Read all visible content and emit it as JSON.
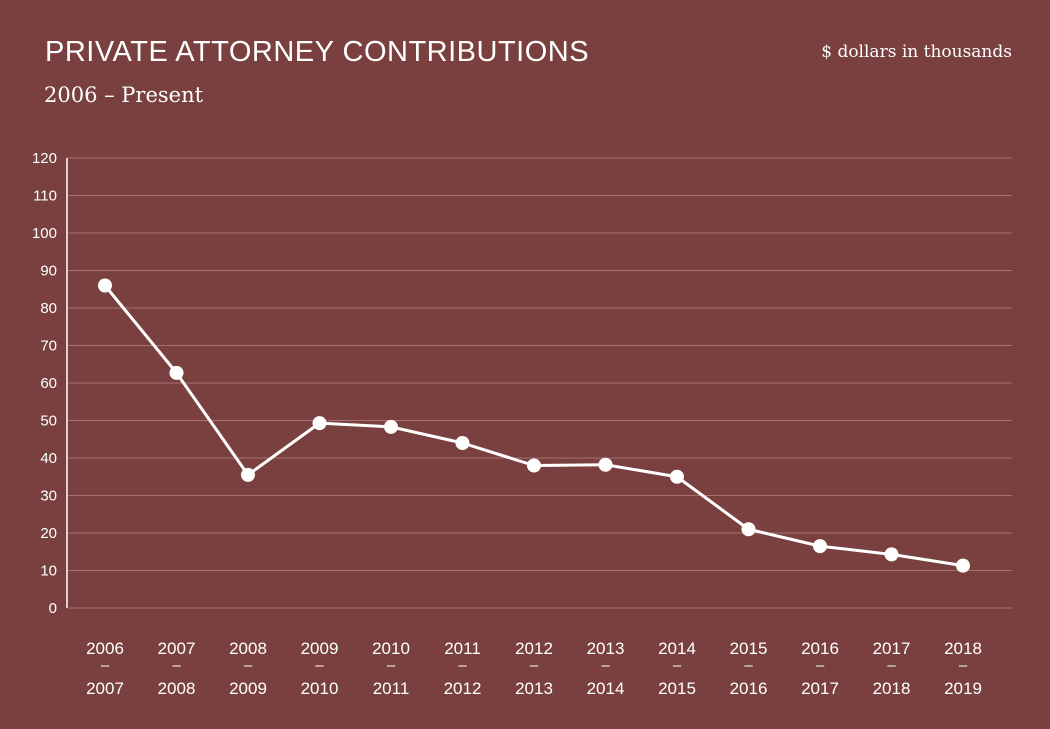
{
  "header": {
    "title": "PRIVATE ATTORNEY CONTRIBUTIONS",
    "subtitle": "2006 – Present",
    "units": "$ dollars in thousands"
  },
  "colors": {
    "background": "#7a4040",
    "line": "#ffffff",
    "grid": "#a87070"
  },
  "chart_data": {
    "type": "line",
    "title": "PRIVATE ATTORNEY CONTRIBUTIONS",
    "subtitle": "2006 – Present",
    "ylabel": "$ dollars in thousands",
    "xlabel": "",
    "ylim": [
      0,
      120
    ],
    "y_ticks": [
      0,
      10,
      20,
      30,
      40,
      50,
      60,
      70,
      80,
      90,
      100,
      110,
      120
    ],
    "grid": true,
    "legend": "none",
    "categories": [
      {
        "top": "2006",
        "sep": "–",
        "bottom": "2007"
      },
      {
        "top": "2007",
        "sep": "–",
        "bottom": "2008"
      },
      {
        "top": "2008",
        "sep": "–",
        "bottom": "2009"
      },
      {
        "top": "2009",
        "sep": "–",
        "bottom": "2010"
      },
      {
        "top": "2010",
        "sep": "–",
        "bottom": "2011"
      },
      {
        "top": "2011",
        "sep": "–",
        "bottom": "2012"
      },
      {
        "top": "2012",
        "sep": "–",
        "bottom": "2013"
      },
      {
        "top": "2013",
        "sep": "–",
        "bottom": "2014"
      },
      {
        "top": "2014",
        "sep": "–",
        "bottom": "2015"
      },
      {
        "top": "2015",
        "sep": "–",
        "bottom": "2016"
      },
      {
        "top": "2016",
        "sep": "–",
        "bottom": "2017"
      },
      {
        "top": "2017",
        "sep": "–",
        "bottom": "2018"
      },
      {
        "top": "2018",
        "sep": "–",
        "bottom": "2019"
      }
    ],
    "values": [
      86,
      62.7,
      35.5,
      49.3,
      48.3,
      44,
      38,
      38.2,
      35,
      21,
      16.5,
      14.3,
      11.3
    ]
  }
}
